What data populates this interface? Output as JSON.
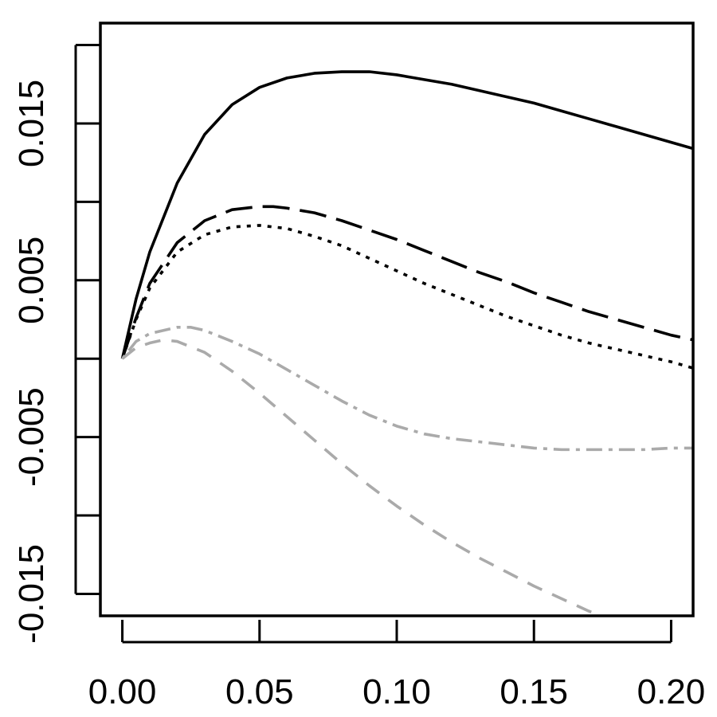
{
  "chart_data": {
    "type": "line",
    "title": "",
    "xlabel": "",
    "ylabel": "",
    "xlim": [
      -0.008,
      0.208
    ],
    "ylim": [
      -0.0164,
      0.0214
    ],
    "x_ticks": [
      0.0,
      0.05,
      0.1,
      0.15,
      0.2
    ],
    "x_tick_labels": [
      "0.00",
      "0.05",
      "0.10",
      "0.15",
      "0.20"
    ],
    "y_ticks": [
      -0.015,
      -0.01,
      -0.005,
      0.0,
      0.005,
      0.01,
      0.015,
      0.02
    ],
    "y_tick_labels": [
      "-0.015",
      "",
      "-0.005",
      "",
      "0.005",
      "",
      "0.015",
      ""
    ],
    "grid": false,
    "legend": "none",
    "series": [
      {
        "style": "solid",
        "color": "#000000",
        "x": [
          0.0,
          0.005,
          0.01,
          0.02,
          0.03,
          0.04,
          0.05,
          0.06,
          0.07,
          0.08,
          0.085,
          0.09,
          0.1,
          0.11,
          0.12,
          0.13,
          0.14,
          0.15,
          0.16,
          0.17,
          0.18,
          0.19,
          0.2,
          0.208
        ],
        "y": [
          0.0,
          0.0038,
          0.0068,
          0.0112,
          0.0143,
          0.0162,
          0.0173,
          0.0179,
          0.0182,
          0.0183,
          0.0183,
          0.0183,
          0.0181,
          0.0178,
          0.0175,
          0.0171,
          0.0167,
          0.0163,
          0.0158,
          0.0153,
          0.0148,
          0.0143,
          0.0138,
          0.0134
        ]
      },
      {
        "style": "longdash",
        "color": "#000000",
        "x": [
          0.0,
          0.005,
          0.01,
          0.02,
          0.03,
          0.04,
          0.05,
          0.055,
          0.06,
          0.07,
          0.08,
          0.09,
          0.1,
          0.11,
          0.12,
          0.13,
          0.14,
          0.15,
          0.16,
          0.17,
          0.18,
          0.19,
          0.2,
          0.208
        ],
        "y": [
          0.0,
          0.0026,
          0.0048,
          0.0074,
          0.0088,
          0.0095,
          0.0097,
          0.0097,
          0.0096,
          0.0093,
          0.0088,
          0.0082,
          0.0076,
          0.0069,
          0.0062,
          0.0055,
          0.0049,
          0.0042,
          0.0036,
          0.003,
          0.0025,
          0.002,
          0.0015,
          0.0012
        ]
      },
      {
        "style": "dotted",
        "color": "#000000",
        "x": [
          0.0,
          0.005,
          0.01,
          0.02,
          0.03,
          0.04,
          0.05,
          0.06,
          0.07,
          0.08,
          0.09,
          0.1,
          0.11,
          0.12,
          0.13,
          0.14,
          0.15,
          0.16,
          0.17,
          0.18,
          0.19,
          0.2,
          0.208
        ],
        "y": [
          0.0,
          0.0025,
          0.0045,
          0.0068,
          0.0079,
          0.0084,
          0.0085,
          0.0083,
          0.0078,
          0.0072,
          0.0064,
          0.0056,
          0.0048,
          0.0041,
          0.0034,
          0.0027,
          0.0021,
          0.0015,
          0.001,
          0.0006,
          0.0002,
          -0.0002,
          -0.0006
        ]
      },
      {
        "style": "dotdash",
        "color": "#aaaaaa",
        "x": [
          0.0,
          0.005,
          0.01,
          0.02,
          0.025,
          0.03,
          0.04,
          0.05,
          0.06,
          0.07,
          0.08,
          0.09,
          0.1,
          0.11,
          0.12,
          0.13,
          0.14,
          0.15,
          0.16,
          0.17,
          0.18,
          0.19,
          0.2,
          0.208
        ],
        "y": [
          0.0,
          0.0011,
          0.0016,
          0.002,
          0.002,
          0.0018,
          0.0011,
          0.0003,
          -0.0007,
          -0.0017,
          -0.0027,
          -0.0036,
          -0.0043,
          -0.0048,
          -0.0051,
          -0.0053,
          -0.0055,
          -0.0057,
          -0.0058,
          -0.0058,
          -0.0058,
          -0.0058,
          -0.0057,
          -0.0057
        ]
      },
      {
        "style": "dashed",
        "color": "#aaaaaa",
        "x": [
          0.0,
          0.005,
          0.01,
          0.015,
          0.02,
          0.03,
          0.04,
          0.05,
          0.06,
          0.07,
          0.08,
          0.09,
          0.1,
          0.11,
          0.12,
          0.13,
          0.14,
          0.15,
          0.16,
          0.17,
          0.18,
          0.19,
          0.2,
          0.208
        ],
        "y": [
          0.0,
          0.0007,
          0.001,
          0.0012,
          0.0011,
          0.0004,
          -0.0008,
          -0.0022,
          -0.0037,
          -0.0052,
          -0.0067,
          -0.0081,
          -0.0094,
          -0.0106,
          -0.0117,
          -0.0127,
          -0.0136,
          -0.0145,
          -0.0153,
          -0.0161,
          -0.0168,
          -0.0175,
          -0.0182,
          -0.0186
        ]
      }
    ]
  }
}
